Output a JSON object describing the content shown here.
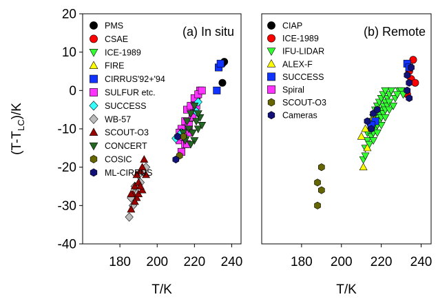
{
  "chart_data": [
    {
      "type": "scatter",
      "panel_label": "(a) In situ",
      "xlabel": "T/K",
      "ylabel": "(T-T_LC)/K",
      "ylabel_main": "(T-T",
      "ylabel_sub": "LC",
      "ylabel_end": ")/K",
      "xlim": [
        160,
        245
      ],
      "ylim": [
        -40,
        20
      ],
      "xticks": [
        180,
        200,
        220,
        240
      ],
      "yticks": [
        -40,
        -30,
        -20,
        -10,
        0,
        10,
        20
      ],
      "legend_position": "top-left",
      "series": [
        {
          "name": "PMS",
          "marker": "circle",
          "color": "#000000",
          "points": [
            [
              235,
              7
            ],
            [
              235,
              2
            ],
            [
              236,
              7.5
            ]
          ]
        },
        {
          "name": "CSAE",
          "marker": "circle",
          "color": "#ff0000",
          "points": []
        },
        {
          "name": "ICE-1989",
          "marker": "triangle-down",
          "color": "#33ff33",
          "points": [
            [
              217,
              -10
            ],
            [
              218,
              -8
            ],
            [
              220,
              -5
            ],
            [
              221,
              -3
            ],
            [
              219,
              -7
            ],
            [
              222,
              -2
            ],
            [
              216,
              -12
            ],
            [
              218,
              -11
            ]
          ]
        },
        {
          "name": "FIRE",
          "marker": "triangle-up",
          "color": "#ffff00",
          "points": []
        },
        {
          "name": "CIRRUS'92+'94",
          "marker": "square",
          "color": "#1133ff",
          "points": [
            [
              233,
              6
            ],
            [
              234,
              7
            ],
            [
              232,
              0
            ]
          ]
        },
        {
          "name": "SULFUR etc.",
          "marker": "square",
          "color": "#ff33ff",
          "points": [
            [
              213,
              -10
            ],
            [
              215,
              -8
            ],
            [
              217,
              -11
            ],
            [
              219,
              -6
            ],
            [
              221,
              -3
            ],
            [
              223,
              0
            ],
            [
              212,
              -13
            ],
            [
              214,
              -12
            ],
            [
              216,
              -5
            ],
            [
              218,
              -4
            ],
            [
              220,
              -2
            ],
            [
              222,
              -1
            ],
            [
              224,
              0
            ],
            [
              213,
              -16
            ],
            [
              215,
              -14
            ],
            [
              217,
              -9
            ],
            [
              219,
              -7
            ],
            [
              221,
              -4
            ],
            [
              212,
              -11
            ],
            [
              216,
              -14
            ]
          ]
        },
        {
          "name": "SUCCESS",
          "marker": "diamond",
          "color": "#33ffff",
          "points": [
            [
              210,
              -12.5
            ],
            [
              221,
              -5.5
            ],
            [
              222,
              -3
            ],
            [
              213,
              -11
            ]
          ]
        },
        {
          "name": "WB-57",
          "marker": "diamond",
          "color": "#bbbbbb",
          "points": [
            [
              185,
              -33
            ],
            [
              186,
              -28
            ],
            [
              188,
              -25
            ],
            [
              190,
              -22
            ],
            [
              192,
              -21
            ],
            [
              194,
              -20
            ],
            [
              189,
              -27
            ],
            [
              187,
              -30
            ],
            [
              191,
              -24
            ]
          ]
        },
        {
          "name": "SCOUT-O3",
          "marker": "triangle-up",
          "color": "#990000",
          "points": [
            [
              186,
              -31
            ],
            [
              187,
              -27
            ],
            [
              188,
              -25
            ],
            [
              189,
              -28
            ],
            [
              190,
              -24
            ],
            [
              191,
              -21
            ],
            [
              192,
              -20
            ],
            [
              193,
              -18
            ],
            [
              194,
              -22
            ],
            [
              190,
              -27
            ],
            [
              192,
              -26
            ],
            [
              186,
              -27
            ],
            [
              189,
              -22
            ],
            [
              191,
              -25
            ],
            [
              188,
              -29
            ]
          ]
        },
        {
          "name": "CONCERT",
          "marker": "triangle-down",
          "color": "#226622",
          "points": [
            [
              215,
              -13
            ],
            [
              217,
              -10
            ],
            [
              219,
              -11
            ],
            [
              221,
              -8
            ],
            [
              223,
              -7
            ],
            [
              220,
              -13
            ],
            [
              218,
              -14
            ],
            [
              222,
              -10
            ],
            [
              216,
              -8
            ],
            [
              218,
              -6
            ],
            [
              220,
              -4
            ],
            [
              214,
              -11
            ],
            [
              222,
              -6
            ],
            [
              224,
              -9
            ]
          ]
        },
        {
          "name": "COSIC",
          "marker": "hexagon",
          "color": "#666600",
          "points": [
            [
              212,
              -17
            ],
            [
              214,
              -12
            ]
          ]
        },
        {
          "name": "ML-CIRRUS",
          "marker": "hexagon",
          "color": "#111177",
          "points": [
            [
              210,
              -18
            ],
            [
              211,
              -12
            ]
          ]
        }
      ]
    },
    {
      "type": "scatter",
      "panel_label": "(b) Remote",
      "xlabel": "T/K",
      "xlim": [
        160,
        245
      ],
      "ylim": [
        -40,
        20
      ],
      "xticks": [
        180,
        200,
        220,
        240
      ],
      "legend_position": "top-left",
      "series": [
        {
          "name": "CIAP",
          "marker": "circle",
          "color": "#000000",
          "points": []
        },
        {
          "name": "ICE-1989",
          "marker": "circle",
          "color": "#ff0000",
          "points": [
            [
              236,
              8
            ],
            [
              234,
              5
            ],
            [
              235,
              3
            ],
            [
              237,
              2
            ],
            [
              233,
              -1
            ]
          ]
        },
        {
          "name": "IFU-LIDAR",
          "marker": "triangle-down",
          "color": "#33ff33",
          "points": [
            [
              211,
              -18
            ],
            [
              212,
              -15
            ],
            [
              213,
              -13
            ],
            [
              214,
              -11
            ],
            [
              215,
              -10
            ],
            [
              216,
              -9
            ],
            [
              217,
              -8
            ],
            [
              218,
              -7
            ],
            [
              219,
              -6
            ],
            [
              220,
              -5
            ],
            [
              221,
              -4
            ],
            [
              222,
              -3
            ],
            [
              223,
              -2
            ],
            [
              224,
              -1
            ],
            [
              225,
              0
            ],
            [
              213,
              -11
            ],
            [
              214,
              -9
            ],
            [
              215,
              -8
            ],
            [
              216,
              -7
            ],
            [
              217,
              -5
            ],
            [
              218,
              -4
            ],
            [
              219,
              -3
            ],
            [
              220,
              -2
            ],
            [
              221,
              -1
            ],
            [
              222,
              0
            ],
            [
              215,
              -12
            ],
            [
              216,
              -11
            ],
            [
              217,
              -10
            ],
            [
              218,
              -9
            ],
            [
              219,
              -8
            ],
            [
              220,
              -7
            ],
            [
              221,
              -6
            ],
            [
              222,
              -5
            ],
            [
              223,
              -4
            ],
            [
              224,
              -3
            ],
            [
              212,
              -17
            ],
            [
              214,
              -14
            ],
            [
              216,
              -13
            ],
            [
              218,
              -11
            ],
            [
              220,
              -9
            ],
            [
              222,
              -7
            ],
            [
              224,
              -5
            ],
            [
              226,
              -4
            ],
            [
              229,
              0
            ],
            [
              230,
              0
            ],
            [
              231,
              -1
            ],
            [
              227,
              -2
            ],
            [
              228,
              -1
            ]
          ]
        },
        {
          "name": "ALEX-F",
          "marker": "triangle-up",
          "color": "#ffff00",
          "points": [
            [
              210,
              -12
            ],
            [
              211,
              -20
            ],
            [
              212,
              -10
            ],
            [
              213,
              -15
            ],
            [
              216,
              -7
            ]
          ]
        },
        {
          "name": "SUCCESS",
          "marker": "square",
          "color": "#1133ff",
          "points": [
            [
              217,
              -8
            ],
            [
              215,
              -9
            ],
            [
              233,
              7
            ],
            [
              234,
              6
            ]
          ]
        },
        {
          "name": "Spiral",
          "marker": "square",
          "color": "#ff33ff",
          "points": []
        },
        {
          "name": "SCOUT-O3",
          "marker": "hexagon",
          "color": "#666600",
          "points": [
            [
              190,
              -20
            ],
            [
              188,
              -24
            ],
            [
              190,
              -26
            ],
            [
              188,
              -30
            ]
          ]
        },
        {
          "name": "Cameras",
          "marker": "hexagon",
          "color": "#111177",
          "points": [
            [
              213,
              -8
            ],
            [
              215,
              -10
            ],
            [
              216,
              -6
            ],
            [
              218,
              -5
            ],
            [
              233,
              4
            ],
            [
              234,
              2
            ],
            [
              233,
              0
            ],
            [
              235,
              6
            ],
            [
              234,
              -2
            ]
          ]
        }
      ]
    }
  ]
}
